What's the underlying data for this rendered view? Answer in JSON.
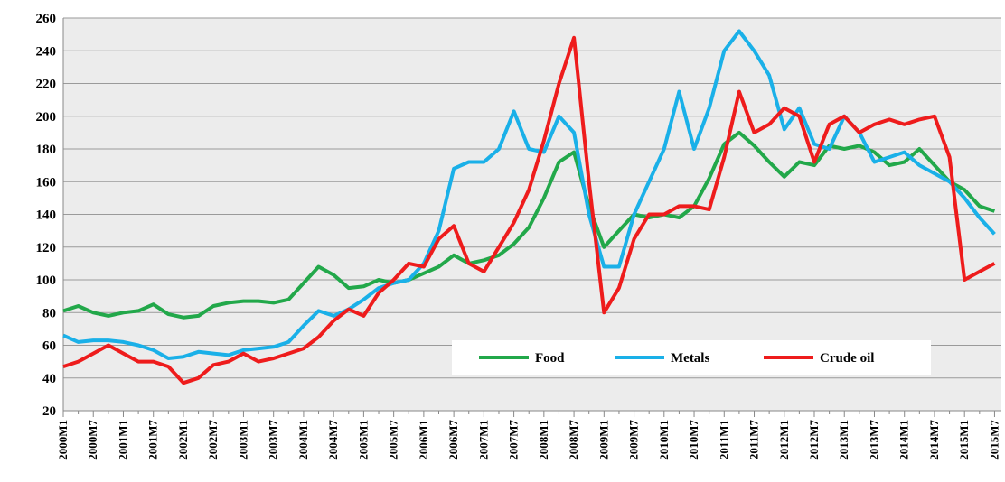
{
  "chart_data": {
    "type": "line",
    "categories": [
      "2000M1",
      null,
      "2000M7",
      null,
      "2001M1",
      null,
      "2001M7",
      null,
      "2002M1",
      null,
      "2002M7",
      null,
      "2003M1",
      null,
      "2003M7",
      null,
      "2004M1",
      null,
      "2004M7",
      null,
      "2005M1",
      null,
      "2005M7",
      null,
      "2006M1",
      null,
      "2006M7",
      null,
      "2007M1",
      null,
      "2007M7",
      null,
      "2008M1",
      null,
      "2008M7",
      null,
      "2009M1",
      null,
      "2009M7",
      null,
      "2010M1",
      null,
      "2010M7",
      null,
      "2011M1",
      null,
      "2011M7",
      null,
      "2012M1",
      null,
      "2012M7",
      null,
      "2013M1",
      null,
      "2013M7",
      null,
      "2014M1",
      null,
      "2014M7",
      null,
      "2015M1",
      null,
      "2015M7"
    ],
    "series": [
      {
        "name": "Food",
        "color": "#22a84a",
        "values": [
          81,
          84,
          80,
          78,
          80,
          81,
          85,
          79,
          77,
          78,
          84,
          86,
          87,
          87,
          86,
          88,
          98,
          108,
          103,
          95,
          96,
          100,
          98,
          100,
          104,
          108,
          115,
          110,
          112,
          115,
          122,
          132,
          150,
          172,
          178,
          145,
          120,
          130,
          140,
          138,
          140,
          138,
          145,
          162,
          183,
          190,
          182,
          172,
          163,
          172,
          170,
          182,
          180,
          182,
          178,
          170,
          172,
          180,
          170,
          160,
          155,
          145,
          142
        ]
      },
      {
        "name": "Metals",
        "color": "#1ab0e8",
        "values": [
          66,
          62,
          63,
          63,
          62,
          60,
          57,
          52,
          53,
          56,
          55,
          54,
          57,
          58,
          59,
          62,
          72,
          81,
          78,
          82,
          88,
          95,
          98,
          100,
          110,
          130,
          168,
          172,
          172,
          180,
          203,
          180,
          178,
          200,
          190,
          140,
          108,
          108,
          140,
          160,
          180,
          215,
          180,
          205,
          240,
          252,
          240,
          225,
          192,
          205,
          183,
          180,
          200,
          190,
          172,
          175,
          178,
          170,
          165,
          160,
          150,
          138,
          128
        ]
      },
      {
        "name": "Crude oil",
        "color": "#ee1c1c",
        "values": [
          47,
          50,
          55,
          60,
          55,
          50,
          50,
          47,
          37,
          40,
          48,
          50,
          55,
          50,
          52,
          55,
          58,
          65,
          75,
          82,
          78,
          92,
          100,
          110,
          108,
          125,
          133,
          110,
          105,
          120,
          135,
          155,
          185,
          220,
          248,
          160,
          80,
          95,
          125,
          140,
          140,
          145,
          145,
          143,
          175,
          215,
          190,
          195,
          205,
          200,
          172,
          195,
          200,
          190,
          195,
          198,
          195,
          198,
          200,
          175,
          100,
          105,
          110
        ]
      }
    ],
    "ylim": [
      20,
      260
    ],
    "yticks": [
      20,
      40,
      60,
      80,
      100,
      120,
      140,
      160,
      180,
      200,
      220,
      240,
      260
    ],
    "grid": true
  }
}
